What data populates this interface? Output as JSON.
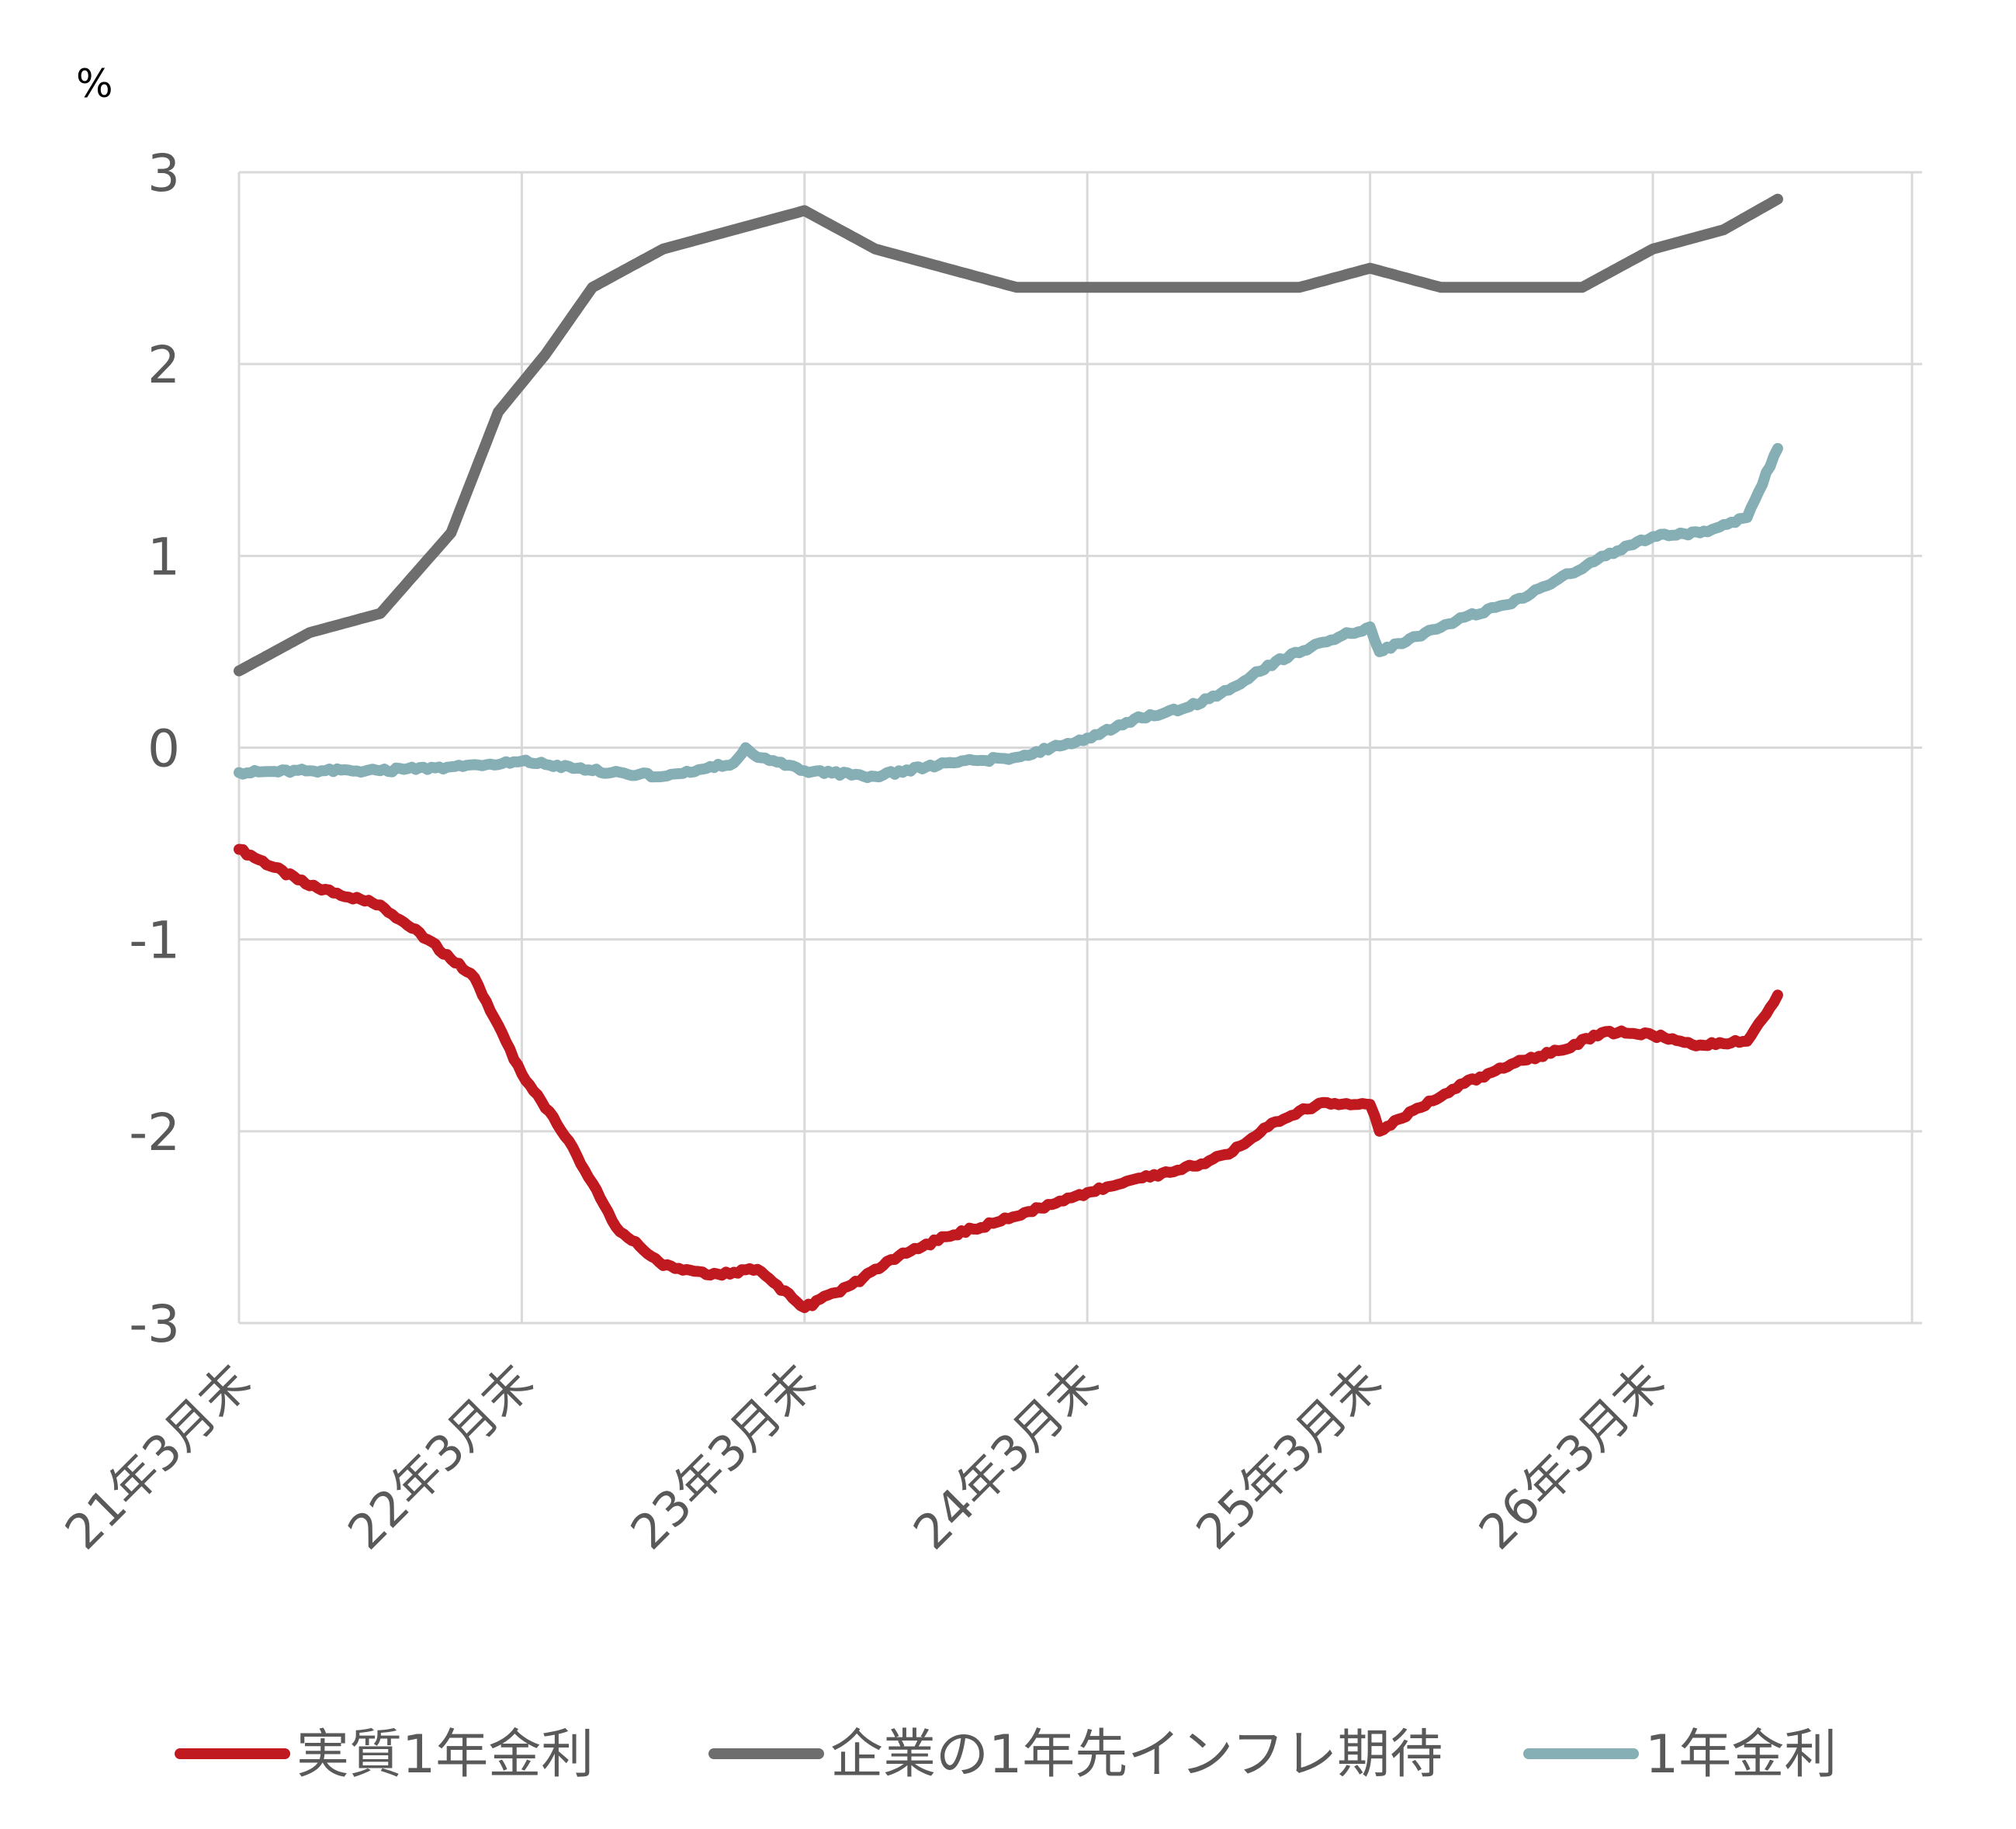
{
  "chart_data": {
    "type": "line",
    "unit_label": "%",
    "ylim": [
      -3,
      3
    ],
    "yticks": [
      3,
      2,
      1,
      0,
      -1,
      -2,
      -3
    ],
    "grid": true,
    "legend_position": "bottom",
    "x_range_months": [
      0,
      71
    ],
    "x_ticks": [
      {
        "m": 0,
        "label": "21年3月末"
      },
      {
        "m": 12,
        "label": "22年3月末"
      },
      {
        "m": 24,
        "label": "23年3月末"
      },
      {
        "m": 36,
        "label": "24年3月末"
      },
      {
        "m": 48,
        "label": "25年3月末"
      },
      {
        "m": 60,
        "label": "26年3月末"
      }
    ],
    "series": [
      {
        "name": "実質1年金利",
        "color": "#c0191f",
        "x": [
          0,
          3,
          6,
          8,
          10,
          12,
          14,
          16,
          18,
          20,
          22,
          24,
          26,
          28,
          30,
          32,
          34,
          36,
          38,
          40,
          42,
          44,
          46,
          48,
          48.4,
          50,
          52,
          54,
          56,
          58,
          60,
          62,
          64,
          65.3
        ],
        "y": [
          -0.53,
          -0.72,
          -0.82,
          -1.0,
          -1.2,
          -1.7,
          -2.05,
          -2.5,
          -2.7,
          -2.75,
          -2.72,
          -2.92,
          -2.8,
          -2.65,
          -2.55,
          -2.48,
          -2.4,
          -2.32,
          -2.25,
          -2.2,
          -2.12,
          -1.95,
          -1.85,
          -1.86,
          -2.0,
          -1.88,
          -1.75,
          -1.65,
          -1.58,
          -1.48,
          -1.5,
          -1.55,
          -1.53,
          -1.29
        ]
      },
      {
        "name": "企業の1年先インフレ期待",
        "color": "#6e6e6e",
        "x": [
          0,
          3,
          6,
          9,
          11,
          13,
          15,
          18,
          21,
          24,
          27,
          30,
          33,
          36,
          39,
          42,
          45,
          48,
          51,
          54,
          57,
          60,
          63,
          65.3
        ],
        "y": [
          0.4,
          0.6,
          0.7,
          1.12,
          1.75,
          2.05,
          2.4,
          2.6,
          2.7,
          2.8,
          2.6,
          2.5,
          2.4,
          2.4,
          2.4,
          2.4,
          2.4,
          2.5,
          2.4,
          2.4,
          2.4,
          2.6,
          2.7,
          2.86
        ]
      },
      {
        "name": "1年金利",
        "color": "#86aeb5",
        "x": [
          0,
          3,
          6,
          9,
          12,
          15,
          18,
          21,
          21.5,
          22,
          24,
          27,
          30,
          33,
          36,
          38,
          40,
          42,
          44,
          46,
          48,
          48.4,
          50,
          52,
          54,
          56,
          58,
          60,
          62,
          64,
          65.3
        ],
        "y": [
          -0.13,
          -0.12,
          -0.12,
          -0.1,
          -0.07,
          -0.12,
          -0.15,
          -0.08,
          0.0,
          -0.05,
          -0.12,
          -0.15,
          -0.08,
          -0.05,
          0.05,
          0.15,
          0.2,
          0.3,
          0.45,
          0.55,
          0.63,
          0.5,
          0.58,
          0.68,
          0.75,
          0.88,
          1.0,
          1.1,
          1.12,
          1.2,
          1.56
        ]
      }
    ]
  }
}
